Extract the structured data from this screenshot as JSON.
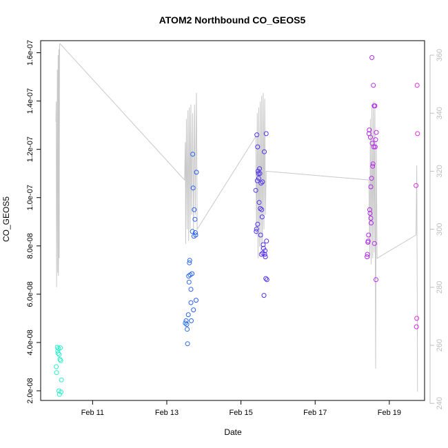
{
  "chart_data": {
    "type": "scatter",
    "title": "ATOM2 Northbound CO_GEOS5",
    "xlabel": "Date",
    "ylabel": "CO_GEOS5",
    "x_range_days": [
      9.98,
      19.95
    ],
    "xlim_days": [
      9.6,
      19.95
    ],
    "ylim": [
      1.6e-08,
      1.65e-07
    ],
    "y_ticks": [
      {
        "value": 2e-08,
        "label": "2.0e-08"
      },
      {
        "value": 4e-08,
        "label": "4.0e-08"
      },
      {
        "value": 6e-08,
        "label": "6.0e-08"
      },
      {
        "value": 8e-08,
        "label": "8.0e-08"
      },
      {
        "value": 1e-07,
        "label": "1.0e-07"
      },
      {
        "value": 1.2e-07,
        "label": "1.2e-07"
      },
      {
        "value": 1.4e-07,
        "label": "1.4e-07"
      },
      {
        "value": 1.6e-07,
        "label": "1.6e-07"
      }
    ],
    "x_ticks": [
      {
        "value": 11,
        "label": "Feb 11"
      },
      {
        "value": 13,
        "label": "Feb 13"
      },
      {
        "value": 15,
        "label": "Feb 15"
      },
      {
        "value": 17,
        "label": "Feb 17"
      },
      {
        "value": 19,
        "label": "Feb 19"
      }
    ],
    "secondary_axis": {
      "side": "right",
      "color": "#bdbdbd",
      "ylim": [
        241,
        365
      ],
      "ticks": [
        {
          "value": 240,
          "label": "240"
        },
        {
          "value": 260,
          "label": "260"
        },
        {
          "value": 280,
          "label": "280"
        },
        {
          "value": 300,
          "label": "300"
        },
        {
          "value": 320,
          "label": "320"
        },
        {
          "value": 340,
          "label": "340"
        },
        {
          "value": 360,
          "label": "360"
        }
      ]
    },
    "points": [
      {
        "x": 10.02,
        "y": 3e-08
      },
      {
        "x": 10.03,
        "y": 2.75e-08
      },
      {
        "x": 10.05,
        "y": 3.8e-08
      },
      {
        "x": 10.06,
        "y": 3.65e-08
      },
      {
        "x": 10.07,
        "y": 3.55e-08
      },
      {
        "x": 10.08,
        "y": 3.75e-08
      },
      {
        "x": 10.09,
        "y": 2e-08
      },
      {
        "x": 10.1,
        "y": 3.5e-08
      },
      {
        "x": 10.11,
        "y": 1.85e-08
      },
      {
        "x": 10.12,
        "y": 3.3e-08
      },
      {
        "x": 10.13,
        "y": 3.78e-08
      },
      {
        "x": 10.14,
        "y": 3.25e-08
      },
      {
        "x": 10.15,
        "y": 1.95e-08
      },
      {
        "x": 10.16,
        "y": 2.45e-08
      },
      {
        "x": 13.5,
        "y": 4.8e-08
      },
      {
        "x": 13.52,
        "y": 4.9e-08
      },
      {
        "x": 13.54,
        "y": 4.75e-08
      },
      {
        "x": 13.55,
        "y": 4.55e-08
      },
      {
        "x": 13.56,
        "y": 3.95e-08
      },
      {
        "x": 13.58,
        "y": 5.15e-08
      },
      {
        "x": 13.59,
        "y": 6.75e-08
      },
      {
        "x": 13.6,
        "y": 6.5e-08
      },
      {
        "x": 13.61,
        "y": 7.3e-08
      },
      {
        "x": 13.62,
        "y": 7.4e-08
      },
      {
        "x": 13.63,
        "y": 6.8e-08
      },
      {
        "x": 13.65,
        "y": 6.2e-08
      },
      {
        "x": 13.65,
        "y": 5.65e-08
      },
      {
        "x": 13.66,
        "y": 4.9e-08
      },
      {
        "x": 13.68,
        "y": 6.85e-08
      },
      {
        "x": 13.69,
        "y": 8.6e-08
      },
      {
        "x": 13.7,
        "y": 1.18e-07
      },
      {
        "x": 13.71,
        "y": 1.04e-07
      },
      {
        "x": 13.72,
        "y": 5.35e-08
      },
      {
        "x": 13.73,
        "y": 8.4e-08
      },
      {
        "x": 13.74,
        "y": 9.5e-08
      },
      {
        "x": 13.76,
        "y": 9.1e-08
      },
      {
        "x": 13.77,
        "y": 8.55e-08
      },
      {
        "x": 13.78,
        "y": 8.45e-08
      },
      {
        "x": 13.79,
        "y": 5.75e-08
      },
      {
        "x": 13.8,
        "y": 1.105e-07
      },
      {
        "x": 15.4,
        "y": 1.03e-07
      },
      {
        "x": 15.41,
        "y": 8.6e-08
      },
      {
        "x": 15.42,
        "y": 8.7e-08
      },
      {
        "x": 15.43,
        "y": 1.26e-07
      },
      {
        "x": 15.44,
        "y": 1.07e-07
      },
      {
        "x": 15.45,
        "y": 1.21e-07
      },
      {
        "x": 15.45,
        "y": 8.9e-08
      },
      {
        "x": 15.46,
        "y": 1.11e-07
      },
      {
        "x": 15.47,
        "y": 1.1e-07
      },
      {
        "x": 15.48,
        "y": 1.08e-07
      },
      {
        "x": 15.49,
        "y": 9.8e-08
      },
      {
        "x": 15.5,
        "y": 1.12e-07
      },
      {
        "x": 15.51,
        "y": 1.1e-07
      },
      {
        "x": 15.52,
        "y": 9.55e-08
      },
      {
        "x": 15.53,
        "y": 8.45e-08
      },
      {
        "x": 15.54,
        "y": 1.06e-07
      },
      {
        "x": 15.55,
        "y": 7.65e-08
      },
      {
        "x": 15.56,
        "y": 9.5e-08
      },
      {
        "x": 15.57,
        "y": 9.2e-08
      },
      {
        "x": 15.58,
        "y": 1.065e-07
      },
      {
        "x": 15.59,
        "y": 7.7e-08
      },
      {
        "x": 15.6,
        "y": 8.05e-08
      },
      {
        "x": 15.61,
        "y": 7.9e-08
      },
      {
        "x": 15.62,
        "y": 5.95e-08
      },
      {
        "x": 15.63,
        "y": 1.19e-07
      },
      {
        "x": 15.64,
        "y": 7.65e-08
      },
      {
        "x": 15.65,
        "y": 7.8e-08
      },
      {
        "x": 15.66,
        "y": 7.55e-08
      },
      {
        "x": 15.67,
        "y": 6.65e-08
      },
      {
        "x": 15.68,
        "y": 1.265e-07
      },
      {
        "x": 15.69,
        "y": 8.2e-08
      },
      {
        "x": 15.7,
        "y": 6.6e-08
      },
      {
        "x": 18.4,
        "y": 7.55e-08
      },
      {
        "x": 18.41,
        "y": 7.65e-08
      },
      {
        "x": 18.42,
        "y": 8.15e-08
      },
      {
        "x": 18.43,
        "y": 8.2e-08
      },
      {
        "x": 18.44,
        "y": 8.45e-08
      },
      {
        "x": 18.45,
        "y": 1.265e-07
      },
      {
        "x": 18.46,
        "y": 1.28e-07
      },
      {
        "x": 18.47,
        "y": 9.5e-08
      },
      {
        "x": 18.48,
        "y": 9.35e-08
      },
      {
        "x": 18.49,
        "y": 1.25e-07
      },
      {
        "x": 18.5,
        "y": 1.045e-07
      },
      {
        "x": 18.5,
        "y": 9.15e-08
      },
      {
        "x": 18.51,
        "y": 8.95e-08
      },
      {
        "x": 18.52,
        "y": 1.08e-07
      },
      {
        "x": 18.53,
        "y": 1.58e-07
      },
      {
        "x": 18.54,
        "y": 1.225e-07
      },
      {
        "x": 18.55,
        "y": 1.13e-07
      },
      {
        "x": 18.56,
        "y": 1.14e-07
      },
      {
        "x": 18.57,
        "y": 1.465e-07
      },
      {
        "x": 18.58,
        "y": 1.21e-07
      },
      {
        "x": 18.59,
        "y": 1.38e-07
      },
      {
        "x": 18.6,
        "y": 8.1e-08
      },
      {
        "x": 18.61,
        "y": 1.38e-07
      },
      {
        "x": 18.62,
        "y": 1.21e-07
      },
      {
        "x": 18.63,
        "y": 1.24e-07
      },
      {
        "x": 18.64,
        "y": 6.6e-08
      },
      {
        "x": 18.65,
        "y": 1.27e-07
      },
      {
        "x": 19.72,
        "y": 1.05e-07
      },
      {
        "x": 19.73,
        "y": 4.65e-08
      },
      {
        "x": 19.74,
        "y": 5e-08
      },
      {
        "x": 19.75,
        "y": 1.465e-07
      },
      {
        "x": 19.76,
        "y": 1.265e-07
      }
    ],
    "secondary_line": [
      {
        "x": 10.01,
        "y": 337
      },
      {
        "x": 10.02,
        "y": 344
      },
      {
        "x": 10.03,
        "y": 280
      },
      {
        "x": 10.05,
        "y": 355
      },
      {
        "x": 10.06,
        "y": 285
      },
      {
        "x": 10.07,
        "y": 360
      },
      {
        "x": 10.08,
        "y": 284
      },
      {
        "x": 10.09,
        "y": 362
      },
      {
        "x": 10.1,
        "y": 290
      },
      {
        "x": 10.11,
        "y": 363
      },
      {
        "x": 10.12,
        "y": 364
      },
      {
        "x": 13.48,
        "y": 317
      },
      {
        "x": 13.5,
        "y": 330
      },
      {
        "x": 13.51,
        "y": 295
      },
      {
        "x": 13.53,
        "y": 338
      },
      {
        "x": 13.55,
        "y": 300
      },
      {
        "x": 13.57,
        "y": 341
      },
      {
        "x": 13.59,
        "y": 296
      },
      {
        "x": 13.61,
        "y": 342
      },
      {
        "x": 13.63,
        "y": 300
      },
      {
        "x": 13.65,
        "y": 343
      },
      {
        "x": 13.67,
        "y": 305
      },
      {
        "x": 13.7,
        "y": 340
      },
      {
        "x": 13.72,
        "y": 300
      },
      {
        "x": 13.75,
        "y": 343
      },
      {
        "x": 13.77,
        "y": 305
      },
      {
        "x": 13.8,
        "y": 347
      },
      {
        "x": 13.82,
        "y": 300
      },
      {
        "x": 15.4,
        "y": 332
      },
      {
        "x": 15.42,
        "y": 298
      },
      {
        "x": 15.44,
        "y": 340
      },
      {
        "x": 15.46,
        "y": 290
      },
      {
        "x": 15.48,
        "y": 342
      },
      {
        "x": 15.5,
        "y": 294
      },
      {
        "x": 15.52,
        "y": 344
      },
      {
        "x": 15.54,
        "y": 292
      },
      {
        "x": 15.56,
        "y": 346
      },
      {
        "x": 15.58,
        "y": 295
      },
      {
        "x": 15.6,
        "y": 347
      },
      {
        "x": 15.62,
        "y": 300
      },
      {
        "x": 15.64,
        "y": 345
      },
      {
        "x": 15.66,
        "y": 305
      },
      {
        "x": 15.68,
        "y": 320
      },
      {
        "x": 18.45,
        "y": 317
      },
      {
        "x": 18.47,
        "y": 290
      },
      {
        "x": 18.49,
        "y": 338
      },
      {
        "x": 18.51,
        "y": 288
      },
      {
        "x": 18.53,
        "y": 342
      },
      {
        "x": 18.55,
        "y": 290
      },
      {
        "x": 18.57,
        "y": 344
      },
      {
        "x": 18.59,
        "y": 292
      },
      {
        "x": 18.61,
        "y": 344
      },
      {
        "x": 18.63,
        "y": 252
      },
      {
        "x": 18.65,
        "y": 330
      },
      {
        "x": 18.67,
        "y": 290
      },
      {
        "x": 19.72,
        "y": 298
      },
      {
        "x": 19.74,
        "y": 322
      },
      {
        "x": 19.76,
        "y": 244
      }
    ]
  },
  "colors": {
    "line": "#c8c8c8",
    "right_axis": "#bdbdbd",
    "point_gradient": [
      "#27f0c8",
      "#28c8f0",
      "#2850f0",
      "#5a28f0",
      "#a028f0",
      "#e628e0"
    ]
  }
}
